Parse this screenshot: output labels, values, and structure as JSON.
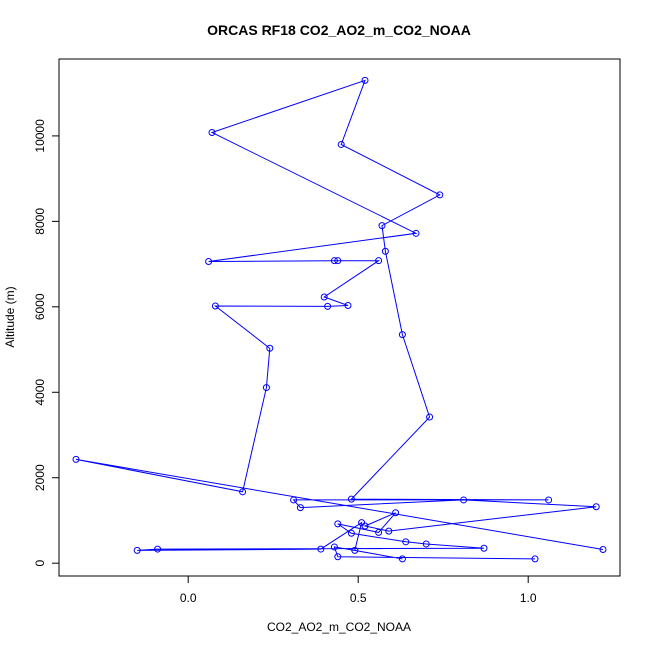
{
  "chart_data": {
    "type": "line",
    "title": "ORCAS RF18 CO2_AO2_m_CO2_NOAA",
    "xlabel": "CO2_AO2_m_CO2_NOAA",
    "ylabel": "Altitude (m)",
    "xlim": [
      -0.38,
      1.27
    ],
    "ylim": [
      -300,
      11800
    ],
    "x_ticks": [
      0.0,
      0.5,
      1.0
    ],
    "x_tick_labels": [
      "0.0",
      "0.5",
      "1.0"
    ],
    "y_ticks": [
      0,
      2000,
      4000,
      6000,
      8000,
      10000
    ],
    "y_tick_labels": [
      "0",
      "2000",
      "4000",
      "6000",
      "8000",
      "10000"
    ],
    "grid": false,
    "series": [
      {
        "color": "#0000ff",
        "marker": "open-circle",
        "x": [
          1.02,
          0.44,
          0.43,
          0.63,
          0.49,
          0.51,
          0.39,
          -0.15,
          -0.09,
          0.87,
          0.7,
          0.64,
          0.48,
          0.44,
          0.56,
          0.61,
          0.52,
          0.59,
          1.2,
          0.81,
          0.33,
          0.31,
          1.06,
          0.48,
          0.71,
          0.63,
          0.58,
          0.57,
          0.74,
          0.45,
          0.52,
          0.07,
          0.67,
          0.06,
          0.43,
          0.44,
          0.56,
          0.4,
          0.47,
          0.41,
          0.08,
          0.24,
          0.23,
          0.16,
          -0.33,
          1.22
        ],
        "y": [
          100,
          150,
          380,
          100,
          300,
          950,
          330,
          300,
          330,
          350,
          450,
          500,
          700,
          920,
          720,
          1180,
          870,
          750,
          1320,
          1480,
          1300,
          1480,
          1480,
          1500,
          3420,
          5350,
          7300,
          7900,
          8620,
          9800,
          11300,
          10080,
          7720,
          7060,
          7080,
          7080,
          7080,
          6230,
          6030,
          6010,
          6020,
          5030,
          4110,
          1670,
          2430,
          320
        ]
      }
    ]
  }
}
